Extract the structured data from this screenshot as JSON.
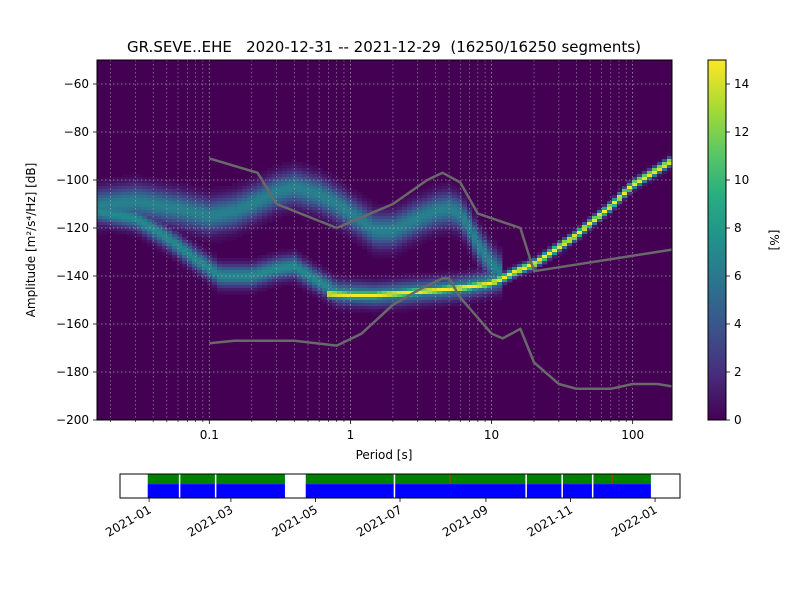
{
  "chart_data": [
    {
      "type": "heatmap",
      "title": "GR.SEVE..EHE   2020-12-31 -- 2021-12-29  (16250/16250 segments)",
      "xlabel": "Period [s]",
      "ylabel": "Amplitude [m²/s⁴/Hz] [dB]",
      "x_scale": "log",
      "xlim": [
        0.016,
        190
      ],
      "ylim": [
        -200,
        -50
      ],
      "x_ticks": [
        {
          "value": 0.1,
          "label": "0.1"
        },
        {
          "value": 1,
          "label": "1"
        },
        {
          "value": 10,
          "label": "10"
        },
        {
          "value": 100,
          "label": "100"
        }
      ],
      "y_ticks": [
        {
          "value": -60,
          "label": "−60"
        },
        {
          "value": -80,
          "label": "−80"
        },
        {
          "value": -100,
          "label": "−100"
        },
        {
          "value": -120,
          "label": "−120"
        },
        {
          "value": -140,
          "label": "−140"
        },
        {
          "value": -160,
          "label": "−160"
        },
        {
          "value": -180,
          "label": "−180"
        },
        {
          "value": -200,
          "label": "−200"
        }
      ],
      "grid": true,
      "colormap": "viridis",
      "colorbar": {
        "label": "[%]",
        "range": [
          0,
          15
        ],
        "ticks": [
          {
            "value": 0,
            "label": "0"
          },
          {
            "value": 2,
            "label": "2"
          },
          {
            "value": 4,
            "label": "4"
          },
          {
            "value": 6,
            "label": "6"
          },
          {
            "value": 8,
            "label": "8"
          },
          {
            "value": 10,
            "label": "10"
          },
          {
            "value": 12,
            "label": "12"
          },
          {
            "value": 14,
            "label": "14"
          }
        ]
      },
      "density_bands": [
        {
          "ridge": [
            [
              0.016,
              -111
            ],
            [
              0.03,
              -109
            ],
            [
              0.06,
              -112
            ],
            [
              0.1,
              -115
            ],
            [
              0.15,
              -113
            ],
            [
              0.2,
              -110
            ],
            [
              0.3,
              -105
            ],
            [
              0.4,
              -103
            ],
            [
              0.6,
              -106
            ],
            [
              0.8,
              -110
            ],
            [
              1.2,
              -117
            ],
            [
              1.5,
              -121
            ],
            [
              2,
              -121
            ],
            [
              3,
              -116
            ],
            [
              4,
              -113
            ],
            [
              5,
              -112
            ],
            [
              6,
              -114
            ],
            [
              7,
              -120
            ],
            [
              8,
              -127
            ],
            [
              10,
              -135
            ],
            [
              12,
              -140
            ]
          ],
          "spread": 4.5,
          "peak": 6.5
        },
        {
          "ridge": [
            [
              0.016,
              -113
            ],
            [
              0.03,
              -116
            ],
            [
              0.05,
              -124
            ],
            [
              0.08,
              -133
            ],
            [
              0.12,
              -140
            ],
            [
              0.2,
              -140
            ],
            [
              0.3,
              -137
            ],
            [
              0.4,
              -136
            ],
            [
              0.55,
              -141
            ],
            [
              0.8,
              -147
            ],
            [
              1.5,
              -148
            ],
            [
              3,
              -146.5
            ],
            [
              6,
              -145
            ],
            [
              9,
              -143
            ],
            [
              12,
              -141
            ]
          ],
          "spread": 3,
          "peak": 7
        },
        {
          "ridge": [
            [
              0.7,
              -147.5
            ],
            [
              1,
              -148
            ],
            [
              1.5,
              -148
            ],
            [
              2.5,
              -147
            ],
            [
              4,
              -146
            ],
            [
              6,
              -145
            ],
            [
              8,
              -144
            ],
            [
              10,
              -143
            ],
            [
              12,
              -141
            ],
            [
              15,
              -138
            ],
            [
              20,
              -135
            ],
            [
              30,
              -128
            ],
            [
              40,
              -123
            ],
            [
              50,
              -118
            ],
            [
              70,
              -111
            ],
            [
              100,
              -102
            ],
            [
              130,
              -98
            ],
            [
              190,
              -92
            ]
          ],
          "spread": 1.2,
          "peak": 15
        }
      ],
      "reference_curves": [
        {
          "points": [
            [
              0.1,
              -91
            ],
            [
              0.22,
              -97
            ],
            [
              0.3,
              -110
            ],
            [
              0.8,
              -120
            ],
            [
              2,
              -110
            ],
            [
              3.5,
              -100
            ],
            [
              4.5,
              -97
            ],
            [
              6,
              -101
            ],
            [
              8,
              -114
            ],
            [
              16,
              -120
            ],
            [
              20,
              -138
            ],
            [
              190,
              -129
            ]
          ]
        },
        {
          "points": [
            [
              0.1,
              -168
            ],
            [
              0.15,
              -167
            ],
            [
              0.4,
              -167
            ],
            [
              0.8,
              -169
            ],
            [
              1.2,
              -164
            ],
            [
              2,
              -152
            ],
            [
              3,
              -146
            ],
            [
              4.5,
              -141
            ],
            [
              5,
              -141
            ],
            [
              6,
              -149
            ],
            [
              10,
              -164
            ],
            [
              12,
              -166
            ],
            [
              16,
              -162
            ],
            [
              20,
              -176
            ],
            [
              30,
              -185
            ],
            [
              40,
              -187
            ],
            [
              70,
              -187
            ],
            [
              100,
              -185
            ],
            [
              150,
              -185
            ],
            [
              190,
              -186
            ]
          ]
        }
      ]
    },
    {
      "type": "bar",
      "orientation": "timeline",
      "xlim": [
        "2020-12-11",
        "2022-01-19"
      ],
      "x_ticks": [
        "2021-01",
        "2021-03",
        "2021-05",
        "2021-07",
        "2021-09",
        "2021-11",
        "2022-01"
      ],
      "colors": {
        "top": "#008000",
        "bottom": "#0000ff",
        "gap": "#ffffff",
        "flag": "#a04000"
      },
      "data_coverage": [
        [
          "2020-12-31",
          "2021-04-09"
        ],
        [
          "2021-04-24",
          "2021-12-29"
        ]
      ],
      "gap_lines": [
        "2021-01-23",
        "2021-02-18",
        "2021-06-27",
        "2021-09-30",
        "2021-10-26",
        "2021-11-17"
      ],
      "flag_marks": [
        "2021-08-06",
        "2021-12-01"
      ]
    }
  ]
}
